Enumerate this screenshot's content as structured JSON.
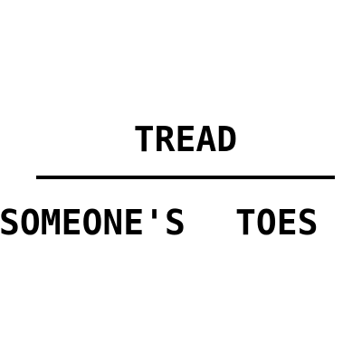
{
  "puzzle": {
    "top_word": "TREAD",
    "bottom_words": [
      "SOMEONE'S",
      "TOES"
    ]
  },
  "colors": {
    "background": "#ffffff",
    "text": "#000000",
    "divider": "#000000"
  }
}
